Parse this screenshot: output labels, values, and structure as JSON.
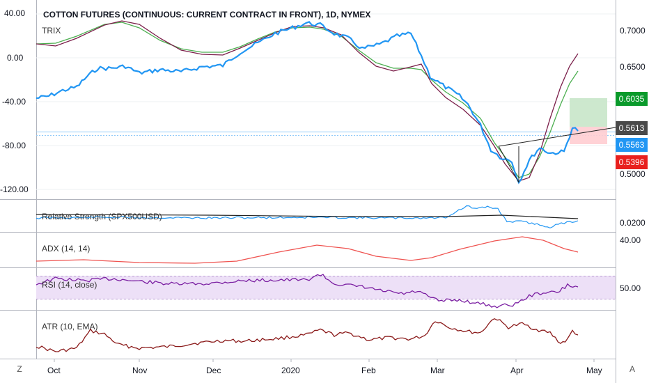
{
  "header": {
    "title": "COTTON FUTURES (CONTINUOUS: CURRENT CONTRACT IN FRONT), 1D, NYMEX",
    "sub_indicator": "TRIX"
  },
  "left_axis": {
    "labels": [
      "40.00",
      "0.00",
      "-40.00",
      "-80.00",
      "-120.00"
    ]
  },
  "right_axis": {
    "labels": [
      "0.7000",
      "0.6500",
      "0.6035",
      "0.5613",
      "0.5563",
      "0.5396",
      "0.5000"
    ]
  },
  "price_tags": {
    "target": {
      "value": "0.6035",
      "color": "#0a9a2b"
    },
    "last": {
      "value": "0.5613",
      "color": "#4a4a4a"
    },
    "close": {
      "value": "0.5563",
      "color": "#2196f3"
    },
    "stop": {
      "value": "0.5396",
      "color": "#e8201e"
    }
  },
  "panels": {
    "relative_strength": {
      "name": "Relative Strength (SPX500USD)",
      "axis_label": "0.0200"
    },
    "adx": {
      "name": "ADX (14, 14)",
      "axis_label": "40.00"
    },
    "rsi": {
      "name": "RSI (14, close)",
      "axis_label": "50.00"
    },
    "atr": {
      "name": "ATR (10, EMA)"
    }
  },
  "time_axis": {
    "labels": [
      "Oct",
      "Nov",
      "Dec",
      "2020",
      "Feb",
      "Mar",
      "Apr",
      "May"
    ]
  },
  "corner_buttons": {
    "left": "Z",
    "right": "A"
  },
  "colors": {
    "price": "#2196f3",
    "trix_fast": "#7b1f4a",
    "trix_slow": "#4caf50",
    "adx": "#ef5350",
    "rsi": "#7b1fa2",
    "atr": "#8b1a1a",
    "rsi_band": "#e8d8f6"
  }
}
